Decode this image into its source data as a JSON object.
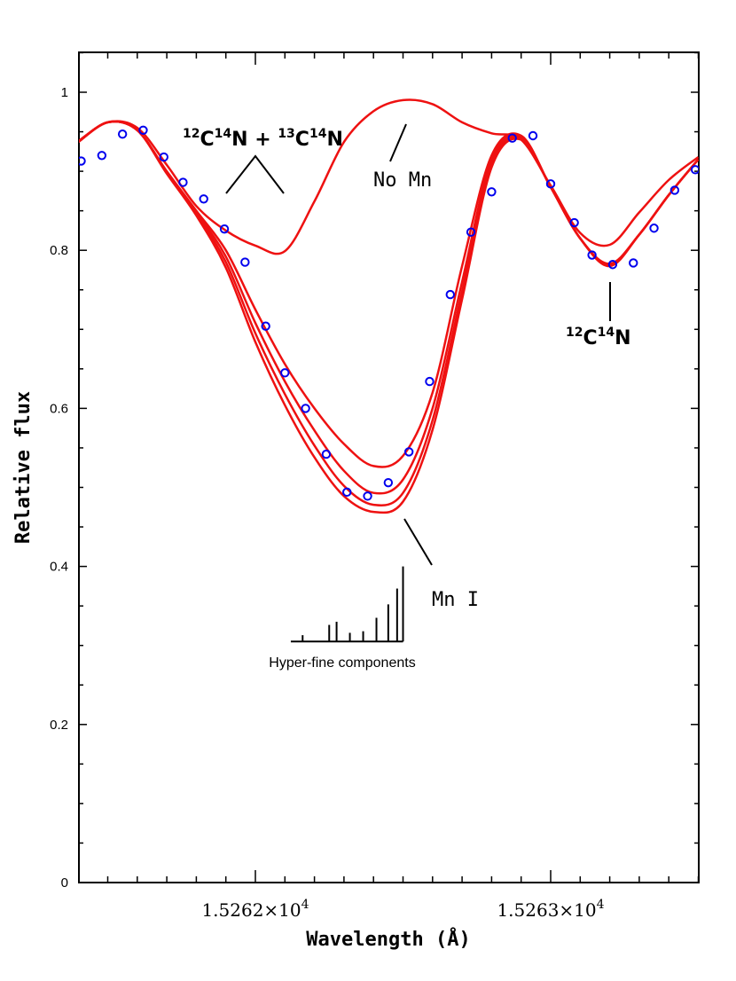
{
  "chart_data": {
    "type": "line",
    "xlabel": "Wavelength (Å)",
    "ylabel": "Relative flux",
    "xlim": [
      15261.4,
      15263.5
    ],
    "ylim": [
      0,
      1.05
    ],
    "x_ticks": [
      {
        "value": 15262,
        "mantissa": "1.5262",
        "times": "×10",
        "exp": "4"
      },
      {
        "value": 15263,
        "mantissa": "1.5263",
        "times": "×10",
        "exp": "4"
      }
    ],
    "y_ticks": [
      {
        "value": 0,
        "label": "0"
      },
      {
        "value": 0.2,
        "label": "0.2"
      },
      {
        "value": 0.4,
        "label": "0.4"
      },
      {
        "value": 0.6,
        "label": "0.6"
      },
      {
        "value": 0.8,
        "label": "0.8"
      },
      {
        "value": 1.0,
        "label": "1"
      }
    ],
    "observed": {
      "color": "#0000ee",
      "x": [
        15261.41,
        15261.48,
        15261.55,
        15261.62,
        15261.69,
        15261.755,
        15261.825,
        15261.895,
        15261.965,
        15262.035,
        15262.1,
        15262.17,
        15262.24,
        15262.31,
        15262.38,
        15262.45,
        15262.52,
        15262.59,
        15262.66,
        15262.73,
        15262.8,
        15262.87,
        15262.94,
        15263.0,
        15263.08,
        15263.14,
        15263.21,
        15263.28,
        15263.35,
        15263.42,
        15263.49
      ],
      "y": [
        0.913,
        0.92,
        0.947,
        0.952,
        0.918,
        0.886,
        0.865,
        0.827,
        0.785,
        0.704,
        0.645,
        0.6,
        0.542,
        0.494,
        0.489,
        0.506,
        0.545,
        0.634,
        0.744,
        0.823,
        0.874,
        0.942,
        0.945,
        0.884,
        0.835,
        0.794,
        0.782,
        0.784,
        0.828,
        0.876,
        0.902
      ]
    },
    "model_color": "#ee1111",
    "models": [
      {
        "x": [
          15261.4,
          15261.5,
          15261.6,
          15261.7,
          15261.8,
          15261.9,
          15262.0,
          15262.1,
          15262.2,
          15262.3,
          15262.4,
          15262.5,
          15262.6,
          15262.7,
          15262.8,
          15262.9,
          15263.0,
          15263.1,
          15263.2,
          15263.3,
          15263.4,
          15263.5
        ],
        "y": [
          0.938,
          0.962,
          0.955,
          0.908,
          0.856,
          0.825,
          0.806,
          0.799,
          0.862,
          0.937,
          0.976,
          0.99,
          0.985,
          0.962,
          0.948,
          0.94,
          0.882,
          0.822,
          0.807,
          0.848,
          0.889,
          0.918
        ]
      },
      {
        "x": [
          15261.4,
          15261.5,
          15261.6,
          15261.7,
          15261.8,
          15261.9,
          15262.0,
          15262.1,
          15262.2,
          15262.3,
          15262.4,
          15262.5,
          15262.6,
          15262.7,
          15262.8,
          15262.9,
          15263.0,
          15263.1,
          15263.2,
          15263.3,
          15263.4,
          15263.5
        ],
        "y": [
          0.937,
          0.962,
          0.952,
          0.9,
          0.85,
          0.8,
          0.725,
          0.656,
          0.6,
          0.555,
          0.527,
          0.54,
          0.62,
          0.78,
          0.92,
          0.945,
          0.88,
          0.815,
          0.783,
          0.82,
          0.87,
          0.915
        ]
      },
      {
        "x": [
          15261.4,
          15261.5,
          15261.6,
          15261.7,
          15261.8,
          15261.9,
          15262.0,
          15262.1,
          15262.2,
          15262.3,
          15262.4,
          15262.5,
          15262.6,
          15262.7,
          15262.8,
          15262.9,
          15263.0,
          15263.1,
          15263.2,
          15263.3,
          15263.4,
          15263.5
        ],
        "y": [
          0.937,
          0.962,
          0.952,
          0.899,
          0.848,
          0.792,
          0.708,
          0.634,
          0.572,
          0.521,
          0.493,
          0.51,
          0.6,
          0.76,
          0.915,
          0.944,
          0.88,
          0.815,
          0.782,
          0.82,
          0.87,
          0.915
        ]
      },
      {
        "x": [
          15261.4,
          15261.5,
          15261.6,
          15261.7,
          15261.8,
          15261.9,
          15262.0,
          15262.1,
          15262.2,
          15262.3,
          15262.4,
          15262.5,
          15262.6,
          15262.7,
          15262.8,
          15262.9,
          15263.0,
          15263.1,
          15263.2,
          15263.3,
          15263.4,
          15263.5
        ],
        "y": [
          0.937,
          0.962,
          0.952,
          0.898,
          0.846,
          0.785,
          0.695,
          0.618,
          0.553,
          0.502,
          0.478,
          0.493,
          0.585,
          0.748,
          0.91,
          0.942,
          0.88,
          0.815,
          0.781,
          0.82,
          0.87,
          0.915
        ]
      },
      {
        "x": [
          15261.4,
          15261.5,
          15261.6,
          15261.7,
          15261.8,
          15261.9,
          15262.0,
          15262.1,
          15262.2,
          15262.3,
          15262.4,
          15262.5,
          15262.6,
          15262.7,
          15262.8,
          15262.9,
          15263.0,
          15263.1,
          15263.2,
          15263.3,
          15263.4,
          15263.5
        ],
        "y": [
          0.937,
          0.962,
          0.952,
          0.897,
          0.844,
          0.778,
          0.684,
          0.604,
          0.538,
          0.489,
          0.469,
          0.482,
          0.573,
          0.738,
          0.905,
          0.94,
          0.88,
          0.815,
          0.78,
          0.82,
          0.87,
          0.915
        ]
      }
    ],
    "hyperfine": {
      "label": "Hyper-fine components",
      "baseline_y": 0.305,
      "baseline_x": [
        15262.12,
        15262.5
      ],
      "lines": [
        {
          "x": 15262.16,
          "top": 0.313
        },
        {
          "x": 15262.25,
          "top": 0.326
        },
        {
          "x": 15262.275,
          "top": 0.33
        },
        {
          "x": 15262.32,
          "top": 0.316
        },
        {
          "x": 15262.365,
          "top": 0.318
        },
        {
          "x": 15262.41,
          "top": 0.335
        },
        {
          "x": 15262.45,
          "top": 0.352
        },
        {
          "x": 15262.48,
          "top": 0.372
        },
        {
          "x": 15262.5,
          "top": 0.4
        }
      ]
    },
    "annotations": {
      "cn_combo": {
        "m1": "12",
        "a1": "C",
        "m2": "14",
        "a2": "N",
        "plus": " + ",
        "m3": "13",
        "a3": "C",
        "m4": "14",
        "a4": "N"
      },
      "no_mn": "No Mn",
      "mn_i": "Mn I",
      "cn_single": {
        "m1": "12",
        "a1": "C",
        "m2": "14",
        "a2": "N"
      }
    }
  }
}
